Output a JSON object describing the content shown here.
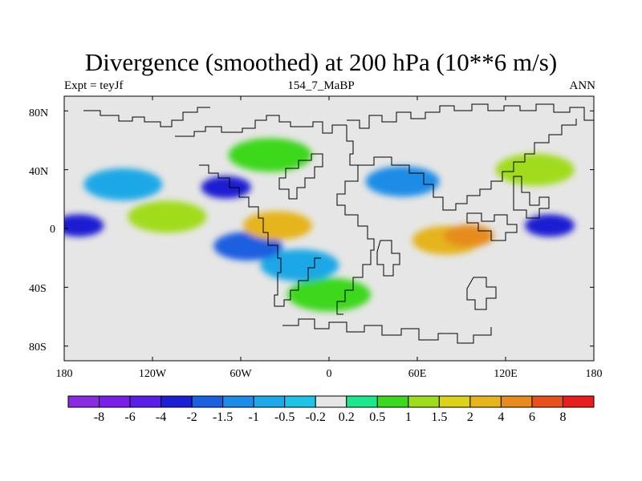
{
  "figure": {
    "title": "Divergence (smoothed) at 200 hPa (10**6 m/s)",
    "left_label": "Expt = teyJf",
    "center_label": "154_7_MaBP",
    "right_label": "ANN"
  },
  "map": {
    "lat_ticks": [
      {
        "label": "80N",
        "lat": 80
      },
      {
        "label": "40N",
        "lat": 40
      },
      {
        "label": "0",
        "lat": 0
      },
      {
        "label": "40S",
        "lat": -40
      },
      {
        "label": "80S",
        "lat": -80
      }
    ],
    "lon_ticks": [
      {
        "label": "180",
        "lon": -180
      },
      {
        "label": "120W",
        "lon": -120
      },
      {
        "label": "60W",
        "lon": -60
      },
      {
        "label": "0",
        "lon": 0
      },
      {
        "label": "60E",
        "lon": 60
      },
      {
        "label": "120E",
        "lon": 120
      },
      {
        "label": "180",
        "lon": 180
      }
    ]
  },
  "colorbar": {
    "colors": [
      "#8a2be2",
      "#7a1fe8",
      "#5a1ee6",
      "#1e1ed2",
      "#1e5fe0",
      "#1e8ce6",
      "#1ea8e6",
      "#1ec3e6",
      "#e6e6e6",
      "#1ee68c",
      "#3cd71e",
      "#a0dc1e",
      "#dcd21e",
      "#e6b41e",
      "#e68c1e",
      "#e6501e",
      "#e61e1e"
    ],
    "labels": [
      "-8",
      "-6",
      "-4",
      "-2",
      "-1.5",
      "-1",
      "-0.5",
      "-0.2",
      "0.2",
      "0.5",
      "1",
      "1.5",
      "2",
      "4",
      "6",
      "8"
    ]
  },
  "chart_data": {
    "type": "heatmap",
    "title": "Divergence (smoothed) at 200 hPa (10**6 m/s)",
    "projection": "cylindrical equidistant",
    "x_range": [
      -180,
      180
    ],
    "y_range": [
      -90,
      90
    ],
    "contour_levels": [
      -8,
      -6,
      -4,
      -2,
      -1.5,
      -1,
      -0.5,
      -0.2,
      0.2,
      0.5,
      1,
      1.5,
      2,
      4,
      6,
      8
    ],
    "features": [
      {
        "region": "central Pacific equator",
        "lon": -170,
        "lat": 2,
        "level": -4
      },
      {
        "region": "subtropical North Atlantic",
        "lon": -70,
        "lat": 28,
        "level": -4
      },
      {
        "region": "South America / South Atlantic",
        "lon": -55,
        "lat": -12,
        "level": -2
      },
      {
        "region": "central Asia",
        "lon": 50,
        "lat": 32,
        "level": -1.5
      },
      {
        "region": "western Pacific equator",
        "lon": 150,
        "lat": 2,
        "level": -4
      },
      {
        "region": "South Atlantic midlatitudes",
        "lon": -20,
        "lat": -25,
        "level": -1
      },
      {
        "region": "northeast Pacific",
        "lon": -140,
        "lat": 30,
        "level": -1
      },
      {
        "region": "Indian Ocean / Maritime Continent",
        "lon": 80,
        "lat": -8,
        "level": 2
      },
      {
        "region": "Maritime Continent core",
        "lon": 95,
        "lat": -5,
        "level": 4
      },
      {
        "region": "tropical Atlantic / Africa",
        "lon": -35,
        "lat": 2,
        "level": 2
      },
      {
        "region": "North Pacific midlatitudes",
        "lon": 140,
        "lat": 40,
        "level": 1
      },
      {
        "region": "North Atlantic midlatitudes",
        "lon": -40,
        "lat": 50,
        "level": 0.5
      },
      {
        "region": "Southern Ocean band",
        "lon": 0,
        "lat": -45,
        "level": 0.5
      },
      {
        "region": "eastern Pacific ITCZ",
        "lon": -110,
        "lat": 8,
        "level": 1
      }
    ]
  }
}
